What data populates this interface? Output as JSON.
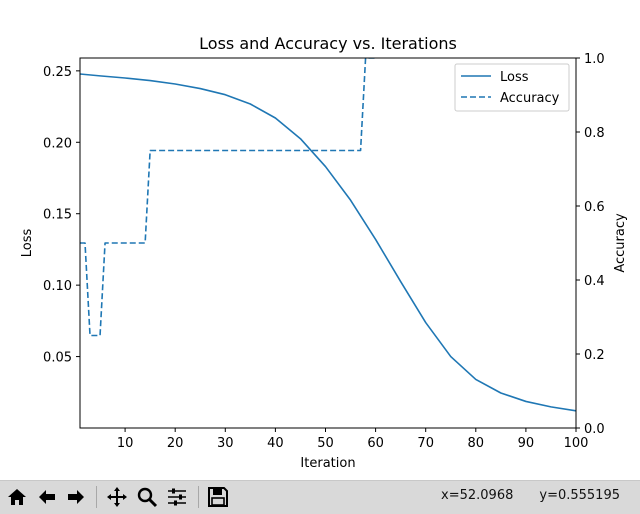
{
  "chart_data": {
    "type": "line",
    "title": "Loss and Accuracy vs. Iterations",
    "xlabel": "Iteration",
    "ylabel_left": "Loss",
    "ylabel_right": "Accuracy",
    "xlim": [
      1,
      100
    ],
    "ylim_left": [
      0,
      0.259
    ],
    "ylim_right": [
      0,
      1.0
    ],
    "x_ticks": [
      10,
      20,
      30,
      40,
      50,
      60,
      70,
      80,
      90,
      100
    ],
    "y_ticks_left": [
      0.05,
      0.1,
      0.15,
      0.2,
      0.25
    ],
    "y_ticks_left_labels": [
      "0.05",
      "0.10",
      "0.15",
      "0.20",
      "0.25"
    ],
    "y_ticks_right": [
      0.0,
      0.2,
      0.4,
      0.6,
      0.8,
      1.0
    ],
    "y_ticks_right_labels": [
      "0.0",
      "0.2",
      "0.4",
      "0.6",
      "0.8",
      "1.0"
    ],
    "legend_position": "top-right",
    "grid": false,
    "color": "#1f77b4",
    "series": [
      {
        "name": "Loss",
        "axis": "left",
        "style": "solid",
        "x": [
          1,
          5,
          10,
          15,
          20,
          25,
          30,
          35,
          40,
          45,
          50,
          55,
          60,
          65,
          70,
          75,
          80,
          85,
          90,
          95,
          100
        ],
        "values": [
          0.2478,
          0.2465,
          0.245,
          0.2432,
          0.2408,
          0.2376,
          0.2333,
          0.2268,
          0.217,
          0.2025,
          0.183,
          0.1595,
          0.132,
          0.1025,
          0.0738,
          0.05,
          0.034,
          0.0245,
          0.0186,
          0.0148,
          0.012
        ]
      },
      {
        "name": "Accuracy",
        "axis": "right",
        "style": "dashed",
        "x": [
          1,
          2,
          3,
          4,
          5,
          6,
          7,
          8,
          9,
          10,
          11,
          12,
          13,
          14,
          15,
          16,
          20,
          25,
          30,
          35,
          40,
          45,
          50,
          55,
          56,
          57,
          58,
          59,
          60
        ],
        "values": [
          0.5,
          0.5,
          0.25,
          0.25,
          0.25,
          0.5,
          0.5,
          0.5,
          0.5,
          0.5,
          0.5,
          0.5,
          0.5,
          0.5,
          0.75,
          0.75,
          0.75,
          0.75,
          0.75,
          0.75,
          0.75,
          0.75,
          0.75,
          0.75,
          0.75,
          0.75,
          1.0,
          1.0,
          1.0
        ]
      }
    ]
  },
  "toolbar": {
    "buttons": [
      {
        "name": "home-icon",
        "label": "Home"
      },
      {
        "name": "back-icon",
        "label": "Back"
      },
      {
        "name": "forward-icon",
        "label": "Forward"
      },
      {
        "name": "pan-icon",
        "label": "Pan"
      },
      {
        "name": "zoom-icon",
        "label": "Zoom"
      },
      {
        "name": "configure-subplots-icon",
        "label": "Configure subplots"
      },
      {
        "name": "save-icon",
        "label": "Save"
      }
    ],
    "coords_x": "x=52.0968",
    "coords_y": "y=0.555195"
  }
}
